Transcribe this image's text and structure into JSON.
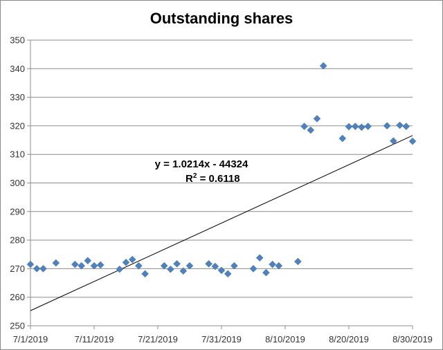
{
  "chart_data": {
    "type": "scatter",
    "title": "Outstanding shares",
    "xlabel": "",
    "ylabel": "",
    "xlim": [
      "7/1/2019",
      "8/30/2019"
    ],
    "ylim": [
      250,
      350
    ],
    "y_tick_step": 10,
    "x_tick_labels": [
      "7/1/2019",
      "7/11/2019",
      "7/21/2019",
      "7/31/2019",
      "8/10/2019",
      "8/20/2019",
      "8/30/2019"
    ],
    "y_tick_labels": [
      "250",
      "260",
      "270",
      "280",
      "290",
      "300",
      "310",
      "320",
      "330",
      "340",
      "350"
    ],
    "grid": "horizontal",
    "legend": "none",
    "marker_color": "#4F81BD",
    "marker": "diamond",
    "series": [
      {
        "x": [
          "7/1/2019",
          "7/2/2019",
          "7/3/2019",
          "7/5/2019",
          "7/8/2019",
          "7/9/2019",
          "7/10/2019",
          "7/11/2019",
          "7/12/2019",
          "7/15/2019",
          "7/16/2019",
          "7/17/2019",
          "7/18/2019",
          "7/19/2019",
          "7/22/2019",
          "7/23/2019",
          "7/24/2019",
          "7/25/2019",
          "7/26/2019",
          "7/29/2019",
          "7/30/2019",
          "7/31/2019",
          "8/1/2019",
          "8/2/2019",
          "8/5/2019",
          "8/6/2019",
          "8/7/2019",
          "8/8/2019",
          "8/9/2019",
          "8/12/2019",
          "8/13/2019",
          "8/14/2019",
          "8/15/2019",
          "8/16/2019",
          "8/19/2019",
          "8/20/2019",
          "8/21/2019",
          "8/22/2019",
          "8/23/2019",
          "8/26/2019",
          "8/27/2019",
          "8/28/2019",
          "8/29/2019",
          "8/30/2019"
        ],
        "y": [
          271.5,
          270.0,
          270.0,
          272.0,
          271.5,
          271.0,
          272.8,
          271.0,
          271.3,
          269.8,
          272.2,
          273.2,
          271.0,
          268.2,
          271.0,
          269.8,
          271.7,
          269.2,
          271.0,
          271.7,
          270.8,
          269.4,
          268.2,
          271.0,
          270.0,
          273.8,
          268.6,
          271.5,
          271.0,
          272.5,
          319.8,
          318.5,
          322.5,
          341.0,
          315.6,
          319.7,
          319.8,
          319.5,
          319.8,
          320.0,
          314.7,
          320.2,
          319.8,
          314.6
        ]
      }
    ],
    "trendline": {
      "type": "linear",
      "slope": 1.0214,
      "intercept": -44324,
      "start": {
        "x": "7/1/2019",
        "y": 255.3
      },
      "end": {
        "x": "8/30/2019",
        "y": 316.6
      },
      "equation_label": "y = 1.0214x - 44324",
      "r2_label_prefix": "R",
      "r2_label_sup": "2",
      "r2_label_suffix": " = 0.6118"
    }
  }
}
